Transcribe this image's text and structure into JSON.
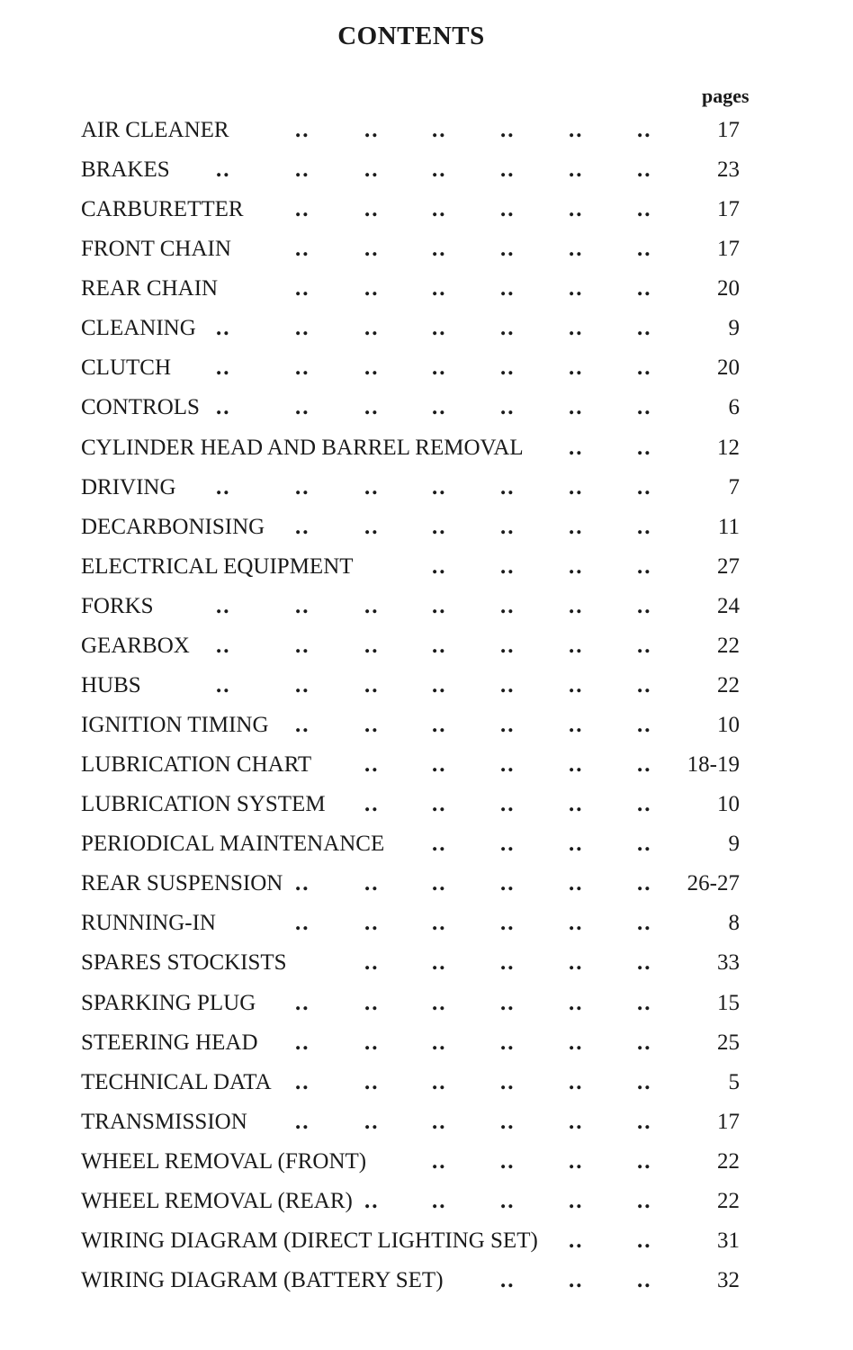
{
  "title": "CONTENTS",
  "pages_heading": "pages",
  "entries": [
    {
      "label": "AIR CLEANER",
      "page": "17"
    },
    {
      "label": "BRAKES",
      "page": "23"
    },
    {
      "label": "CARBURETTER",
      "page": "17"
    },
    {
      "label": "FRONT CHAIN",
      "page": "17"
    },
    {
      "label": "REAR CHAIN",
      "page": "20"
    },
    {
      "label": "CLEANING",
      "page": "9"
    },
    {
      "label": "CLUTCH",
      "page": "20"
    },
    {
      "label": "CONTROLS",
      "page": "6"
    },
    {
      "label": "CYLINDER HEAD AND BARREL REMOVAL",
      "page": "12"
    },
    {
      "label": "DRIVING",
      "page": "7"
    },
    {
      "label": "DECARBONISING",
      "page": "11"
    },
    {
      "label": "ELECTRICAL EQUIPMENT",
      "page": "27"
    },
    {
      "label": "FORKS",
      "page": "24"
    },
    {
      "label": "GEARBOX",
      "page": "22"
    },
    {
      "label": "HUBS",
      "page": "22"
    },
    {
      "label": "IGNITION TIMING",
      "page": "10"
    },
    {
      "label": "LUBRICATION CHART",
      "page": "18-19"
    },
    {
      "label": "LUBRICATION SYSTEM",
      "page": "10"
    },
    {
      "label": "PERIODICAL MAINTENANCE",
      "page": "9"
    },
    {
      "label": "REAR SUSPENSION",
      "page": "26-27"
    },
    {
      "label": "RUNNING-IN",
      "page": "8"
    },
    {
      "label": "SPARES STOCKISTS",
      "page": "33"
    },
    {
      "label": "SPARKING PLUG",
      "page": "15"
    },
    {
      "label": "STEERING HEAD",
      "page": "25"
    },
    {
      "label": "TECHNICAL DATA",
      "page": "5"
    },
    {
      "label": "TRANSMISSION",
      "page": "17"
    },
    {
      "label": "WHEEL REMOVAL (FRONT)",
      "page": "22"
    },
    {
      "label": "WHEEL REMOVAL (REAR)",
      "page": "22"
    },
    {
      "label": "WIRING DIAGRAM (DIRECT LIGHTING SET)",
      "page": "31"
    },
    {
      "label": "WIRING DIAGRAM (BATTERY SET)",
      "page": "32"
    }
  ]
}
